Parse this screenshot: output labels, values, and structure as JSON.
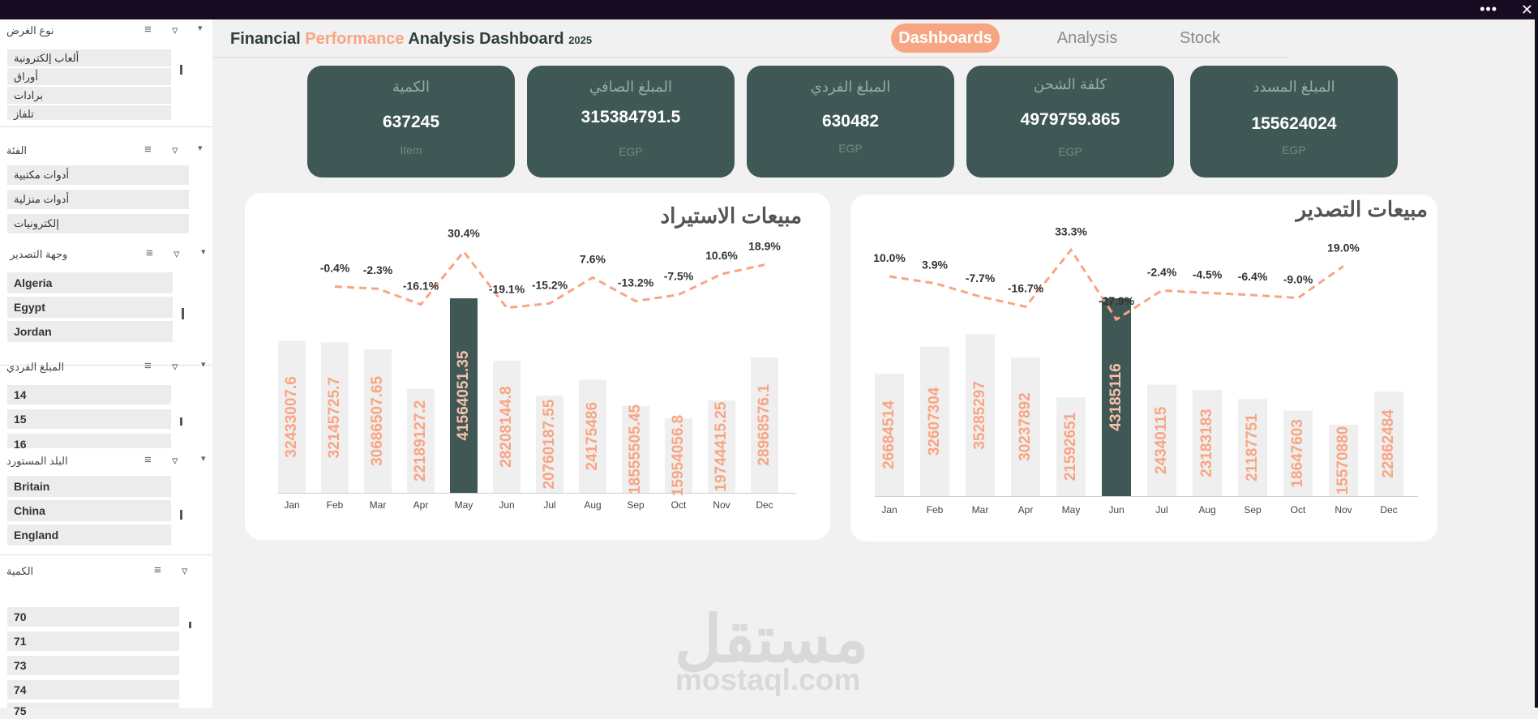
{
  "title": {
    "part1": "Financial ",
    "part2": "Performance",
    "part3": " Analysis Dashboard ",
    "year": "2025"
  },
  "nav": [
    {
      "label": "Dashboards",
      "active": true
    },
    {
      "label": "Analysis",
      "active": false
    },
    {
      "label": "Stock",
      "active": false
    }
  ],
  "kpis": [
    {
      "label": "الكمية",
      "value": "637245",
      "unit": "Item"
    },
    {
      "label": "المبلغ الصافي",
      "value": "315384791.5",
      "unit": "EGP"
    },
    {
      "label": "المبلغ الفردي",
      "value": "630482",
      "unit": "EGP"
    },
    {
      "label": "كلفة الشحن",
      "value": "4979759.865",
      "unit": "EGP"
    },
    {
      "label": "المبلغ المسدد",
      "value": "155624024",
      "unit": "EGP"
    }
  ],
  "slicers": [
    {
      "title": "نوع الغرض",
      "items": [
        "ألعاب إلكترونية",
        "أوراق",
        "برادات",
        "تلفاز"
      ]
    },
    {
      "title": "الفئة",
      "items": [
        "أدوات مكتبية",
        "أدوات منزلية",
        "إلكترونيات"
      ]
    },
    {
      "title": "وجهة التصدير",
      "items": [
        "Algeria",
        "Egypt",
        "Jordan"
      ]
    },
    {
      "title": "المبلغ الفردي",
      "items": [
        "14",
        "15",
        "16"
      ]
    },
    {
      "title": "البلد المستورد",
      "items": [
        "Britain",
        "China",
        "England"
      ]
    },
    {
      "title": "الكمية",
      "items": [
        "70",
        "71",
        "73",
        "74",
        "75"
      ]
    }
  ],
  "watermark": {
    "arabic": "مستقل",
    "latin": "mostaql.com"
  },
  "colors": {
    "accent": "#f8a583",
    "dark": "#3f5855",
    "barLight": "#efefef"
  },
  "chart_data": [
    {
      "type": "bar",
      "title": "مبيعات الاستيراد",
      "categories": [
        "Jan",
        "Feb",
        "Mar",
        "Apr",
        "May",
        "Jun",
        "Jul",
        "Aug",
        "Sep",
        "Oct",
        "Nov",
        "Dec"
      ],
      "values": [
        32433007.6,
        32145725.7,
        30686507.65,
        22189127.2,
        41564051.35,
        28208144.8,
        20760187.55,
        24175486,
        18555505.45,
        15954056.8,
        19744415.25,
        28968576.1
      ],
      "value_labels": [
        "32433007.6",
        "32145725.7",
        "30686507.65",
        "22189127.2",
        "41564051.35",
        "28208144.8",
        "20760187.55",
        "24175486",
        "18555505.45",
        "15954056.8",
        "19744415.25",
        "28968576.1"
      ],
      "highlight": "May",
      "growth_labels": [
        "",
        "-0.4%",
        "-2.3%",
        "-16.1%",
        "30.4%",
        "-19.1%",
        "-15.2%",
        "7.6%",
        "-13.2%",
        "-7.5%",
        "10.6%",
        "18.9%"
      ],
      "growth": [
        null,
        -0.4,
        -2.3,
        -16.1,
        30.4,
        -19.1,
        -15.2,
        7.6,
        -13.2,
        -7.5,
        10.6,
        18.9
      ]
    },
    {
      "type": "bar",
      "title": "مبيعات التصدير",
      "categories": [
        "Jan",
        "Feb",
        "Mar",
        "Apr",
        "May",
        "Jun",
        "Jul",
        "Aug",
        "Sep",
        "Oct",
        "Nov",
        "Dec"
      ],
      "values": [
        26684514,
        32607304,
        35285297,
        30237892,
        21592651,
        43185116,
        24340115,
        23183183,
        21187751,
        18647603,
        15570880,
        22862484
      ],
      "value_labels": [
        "26684514",
        "32607304",
        "35285297",
        "30237892",
        "21592651",
        "43185116",
        "24340115",
        "23183183",
        "21187751",
        "18647603",
        "15570880",
        "22862484"
      ],
      "highlight": "Jun",
      "growth_labels": [
        "10.0%",
        "3.9%",
        "-7.7%",
        "-16.7%",
        "33.3%",
        "-27.9%",
        "-2.4%",
        "-4.5%",
        "-6.4%",
        "-9.0%",
        "19.0%",
        ""
      ],
      "growth": [
        10.0,
        3.9,
        -7.7,
        -16.7,
        33.3,
        -27.9,
        -2.4,
        -4.5,
        -6.4,
        -9.0,
        19.0,
        null
      ]
    }
  ]
}
